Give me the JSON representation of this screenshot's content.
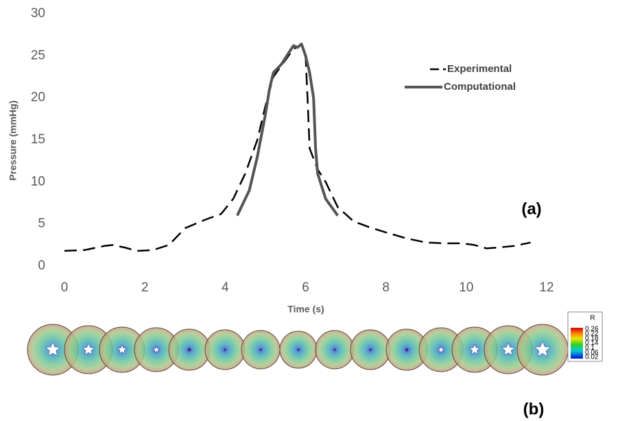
{
  "chart_data": {
    "type": "line",
    "xlabel": "Time (s)",
    "ylabel": "Pressure (mmHg)",
    "xlim": [
      0,
      12
    ],
    "xticks": [
      0,
      2,
      4,
      6,
      8,
      10,
      12
    ],
    "ylim": [
      0,
      30
    ],
    "yticks": [
      0,
      5,
      10,
      15,
      20,
      25,
      30
    ],
    "grid": false,
    "series": [
      {
        "name": "Experimental",
        "color": "#000000",
        "style": "dashed",
        "x": [
          0,
          0.5,
          1,
          1.2,
          1.5,
          1.8,
          2.2,
          2.6,
          2.8,
          3,
          3.5,
          3.9,
          4.2,
          4.5,
          4.8,
          5,
          5.2,
          5.5,
          5.7,
          5.9,
          6,
          6.05,
          6.1,
          6.3,
          6.5,
          6.8,
          7.2,
          7.6,
          8,
          8.5,
          9,
          9.5,
          9.9,
          10.2,
          10.5,
          10.8,
          11.2,
          11.6
        ],
        "values": [
          1.8,
          1.9,
          2.4,
          2.5,
          2.2,
          1.8,
          1.9,
          2.5,
          3.5,
          4.5,
          5.5,
          6.2,
          8,
          11,
          15,
          19,
          22.5,
          24.5,
          25.8,
          26.3,
          25,
          20,
          14,
          11.5,
          10,
          7,
          5.3,
          4.6,
          4,
          3.3,
          2.8,
          2.7,
          2.7,
          2.5,
          2.1,
          2.2,
          2.4,
          2.8
        ]
      },
      {
        "name": "Computational",
        "color": "#555555",
        "style": "solid",
        "x": [
          4.3,
          4.6,
          4.8,
          5,
          5.1,
          5.2,
          5.4,
          5.6,
          5.7,
          5.8,
          5.9,
          6,
          6.1,
          6.2,
          6.25,
          6.3,
          6.5,
          6.8
        ],
        "values": [
          6,
          9,
          13,
          18,
          21,
          23,
          24,
          25.5,
          26.2,
          26,
          26.4,
          25,
          23,
          20,
          14,
          11,
          8,
          6
        ]
      }
    ],
    "annotations": [
      "(a)",
      "(b)"
    ]
  },
  "colorbar": {
    "title": "R",
    "labels": [
      0.26,
      0.22,
      0.18,
      0.14,
      0.1,
      0.06,
      0.02
    ]
  }
}
